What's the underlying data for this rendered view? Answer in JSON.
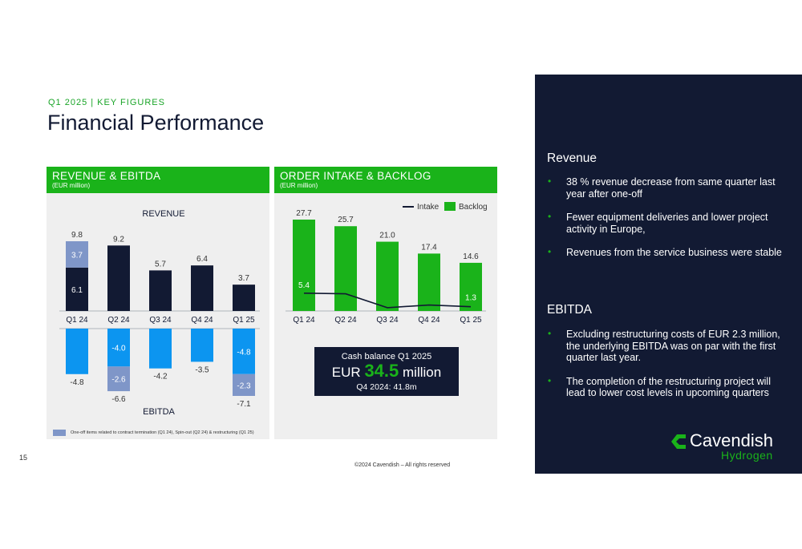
{
  "header": {
    "subtitle": "Q1 2025 | KEY FIGURES",
    "title": "Financial Performance"
  },
  "panels": {
    "left": {
      "title": "REVENUE & EBITDA",
      "sub": "(EUR million)",
      "revenue_label": "REVENUE",
      "ebitda_label": "EBITDA"
    },
    "right": {
      "title": "ORDER INTAKE & BACKLOG",
      "sub": "(EUR million)"
    }
  },
  "chart_data": [
    {
      "type": "bar",
      "title": "REVENUE",
      "categories": [
        "Q1 24",
        "Q2 24",
        "Q3 24",
        "Q4 24",
        "Q1 25"
      ],
      "series": [
        {
          "name": "",
          "values": [
            6.1,
            9.2,
            5.7,
            6.4,
            3.7
          ]
        },
        {
          "name": "One-off items related to contract termination (Q1 24), Spin-out (Q2 24) & restructuring (Q1 25)",
          "values": [
            3.7,
            0,
            0,
            0,
            0
          ]
        }
      ],
      "totals": [
        9.8,
        9.2,
        5.7,
        6.4,
        3.7
      ],
      "stacked": true,
      "ylim": [
        0,
        9.8
      ]
    },
    {
      "type": "bar",
      "title": "EBITDA",
      "categories": [
        "Q1 24",
        "Q2 24",
        "Q3 24",
        "Q4 24",
        "Q1 25"
      ],
      "series": [
        {
          "name": "",
          "values": [
            -4.8,
            -4.0,
            -4.2,
            -3.5,
            -4.8
          ]
        },
        {
          "name": "One-off items related to contract termination (Q1 24), Spin-out (Q2 24) & restructuring (Q1 25)",
          "values": [
            0,
            -2.6,
            0,
            0,
            -2.3
          ]
        }
      ],
      "totals": [
        -4.8,
        -6.6,
        -4.2,
        -3.5,
        -7.1
      ],
      "stacked": true,
      "ylim": [
        -7.1,
        0
      ]
    },
    {
      "type": "bar",
      "title": "ORDER INTAKE & BACKLOG",
      "categories": [
        "Q1 24",
        "Q2 24",
        "Q3 24",
        "Q4 24",
        "Q1 25"
      ],
      "series": [
        {
          "name": "Backlog",
          "type": "bar",
          "values": [
            27.7,
            25.7,
            21.0,
            17.4,
            14.6
          ]
        },
        {
          "name": "Intake",
          "type": "line",
          "values": [
            5.4,
            5.2,
            1.0,
            1.8,
            1.3
          ]
        }
      ],
      "value_labels": {
        "Backlog": [
          "27.7",
          "25.7",
          "21.0",
          "17.4",
          "14.6"
        ],
        "Intake": [
          "5.4",
          "",
          "",
          "",
          "1.3"
        ]
      },
      "legend": "top-right",
      "ylim": [
        0,
        27.7
      ]
    }
  ],
  "cash": {
    "label": "Cash balance Q1 2025",
    "prefix": "EUR",
    "amount": "34.5",
    "suffix": "million",
    "previous": "Q4 2024: 41.8m"
  },
  "legend_note": "One-off items related to contract termination (Q1 24), Spin-out (Q2 24) & restructuring (Q1 25)",
  "footer": {
    "page": "15",
    "copyright": "©2024 Cavendish – All rights reserved"
  },
  "sidebar": {
    "revenue_heading": "Revenue",
    "revenue_points": [
      "38 % revenue decrease from same quarter last year after one-off",
      "Fewer equipment deliveries and lower project activity in Europe,",
      "Revenues from the service business were stable"
    ],
    "ebitda_heading": "EBITDA",
    "ebitda_points": [
      "Excluding restructuring costs of EUR 2.3 million, the underlying EBITDA was on par with the first quarter last year.",
      "The completion of the restructuring project will lead to lower cost levels in upcoming quarters"
    ],
    "bullet": "•",
    "logo_word": "Cavendish",
    "logo_sub": "Hydrogen"
  },
  "colors": {
    "navy": "#121a33",
    "green": "#1ab31a",
    "ebitda_blue": "#0c95f0",
    "oneoff": "#7f96c8",
    "panel_bg": "#efefef"
  }
}
